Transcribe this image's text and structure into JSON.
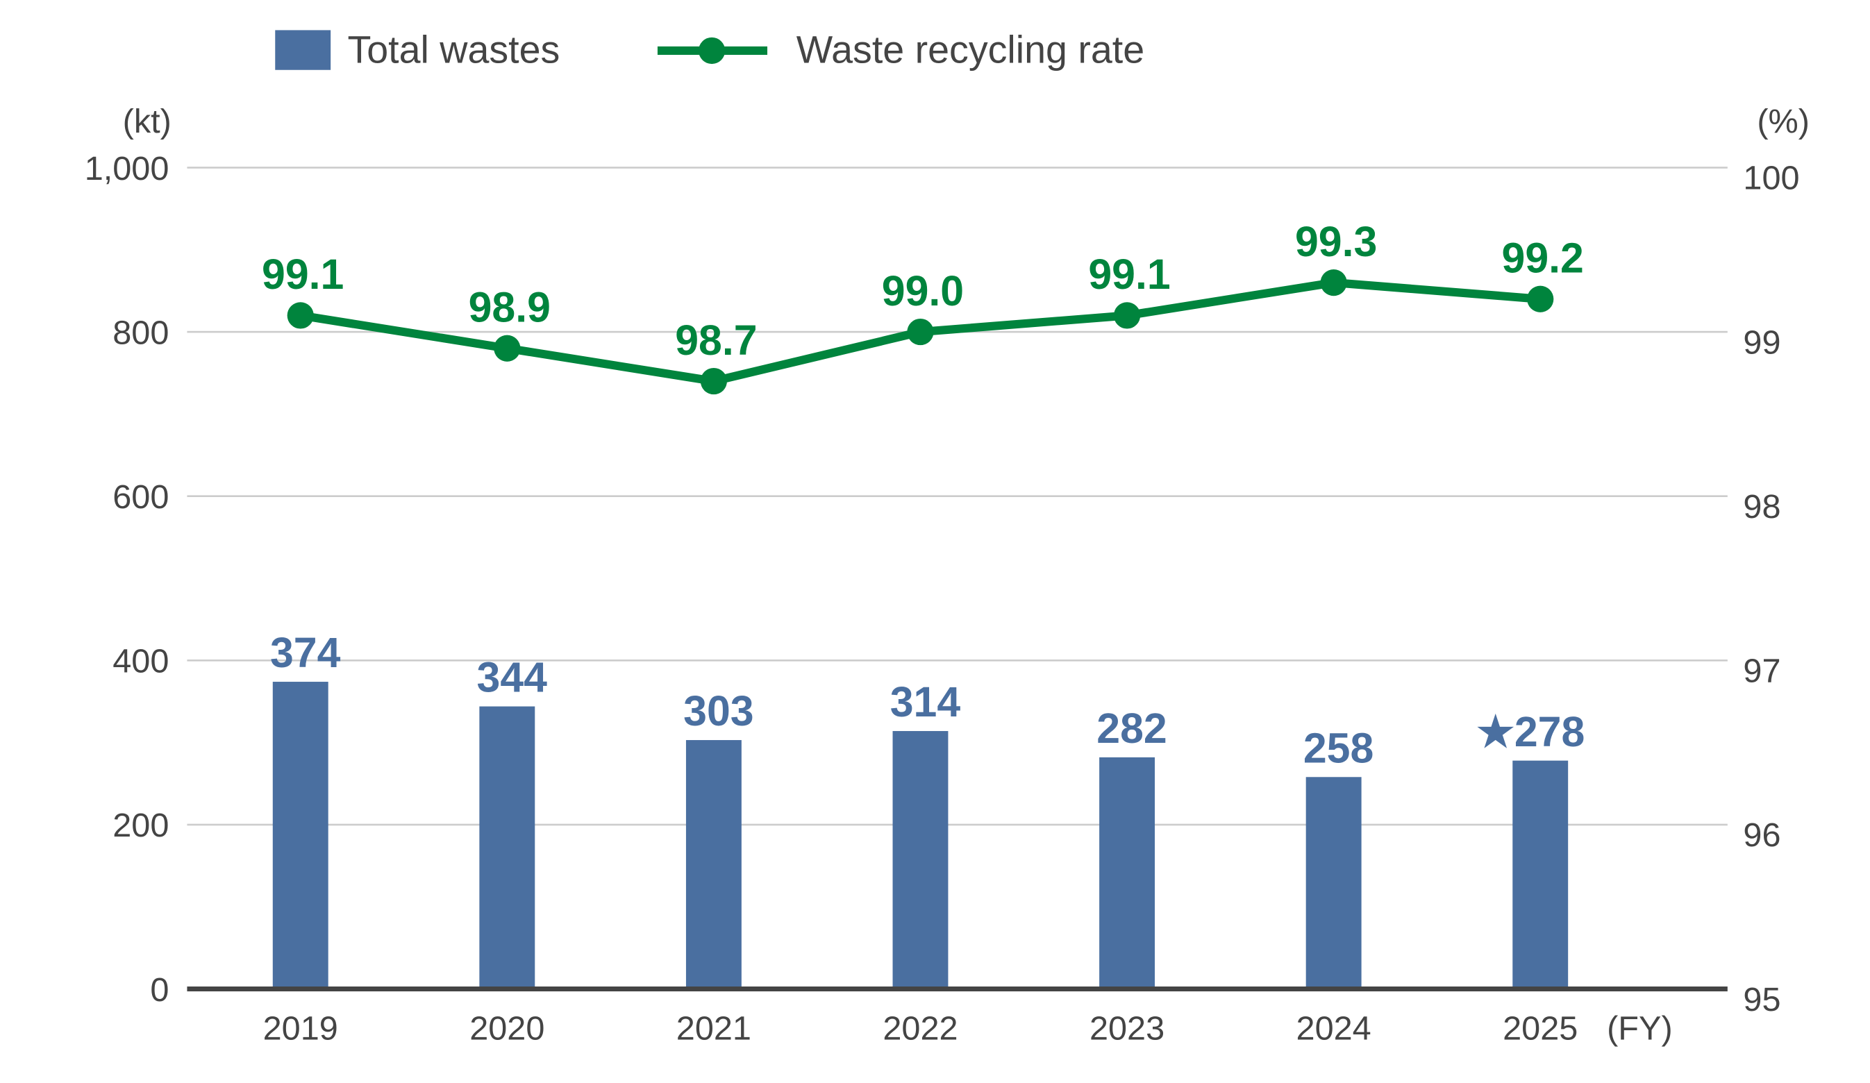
{
  "chart_data": {
    "type": "bar+line",
    "categories": [
      "2019",
      "2020",
      "2021",
      "2022",
      "2023",
      "2024",
      "2025"
    ],
    "xlabel": "(FY)",
    "ylabel_left": "(kt)",
    "ylabel_right": "(%)",
    "ylim_left": [
      0,
      1000
    ],
    "ylim_right": [
      95,
      100
    ],
    "yticks_left": [
      "0",
      "200",
      "400",
      "600",
      "800",
      "1,000"
    ],
    "yticks_right": [
      "95",
      "96",
      "97",
      "98",
      "99",
      "100"
    ],
    "grid": true,
    "legend_placement": "top",
    "series": [
      {
        "name": "Total wastes",
        "type": "bar",
        "axis": "left",
        "color": "#4a6fa0",
        "values": [
          374,
          344,
          303,
          314,
          282,
          258,
          278
        ],
        "labels": [
          "374",
          "344",
          "303",
          "314",
          "282",
          "258",
          "★278"
        ]
      },
      {
        "name": "Waste recycling rate",
        "type": "line",
        "axis": "right",
        "color": "#00843d",
        "values": [
          99.1,
          98.9,
          98.7,
          99.0,
          99.1,
          99.3,
          99.2
        ],
        "labels": [
          "99.1",
          "98.9",
          "98.7",
          "99.0",
          "99.1",
          "99.3",
          "99.2"
        ]
      }
    ]
  }
}
